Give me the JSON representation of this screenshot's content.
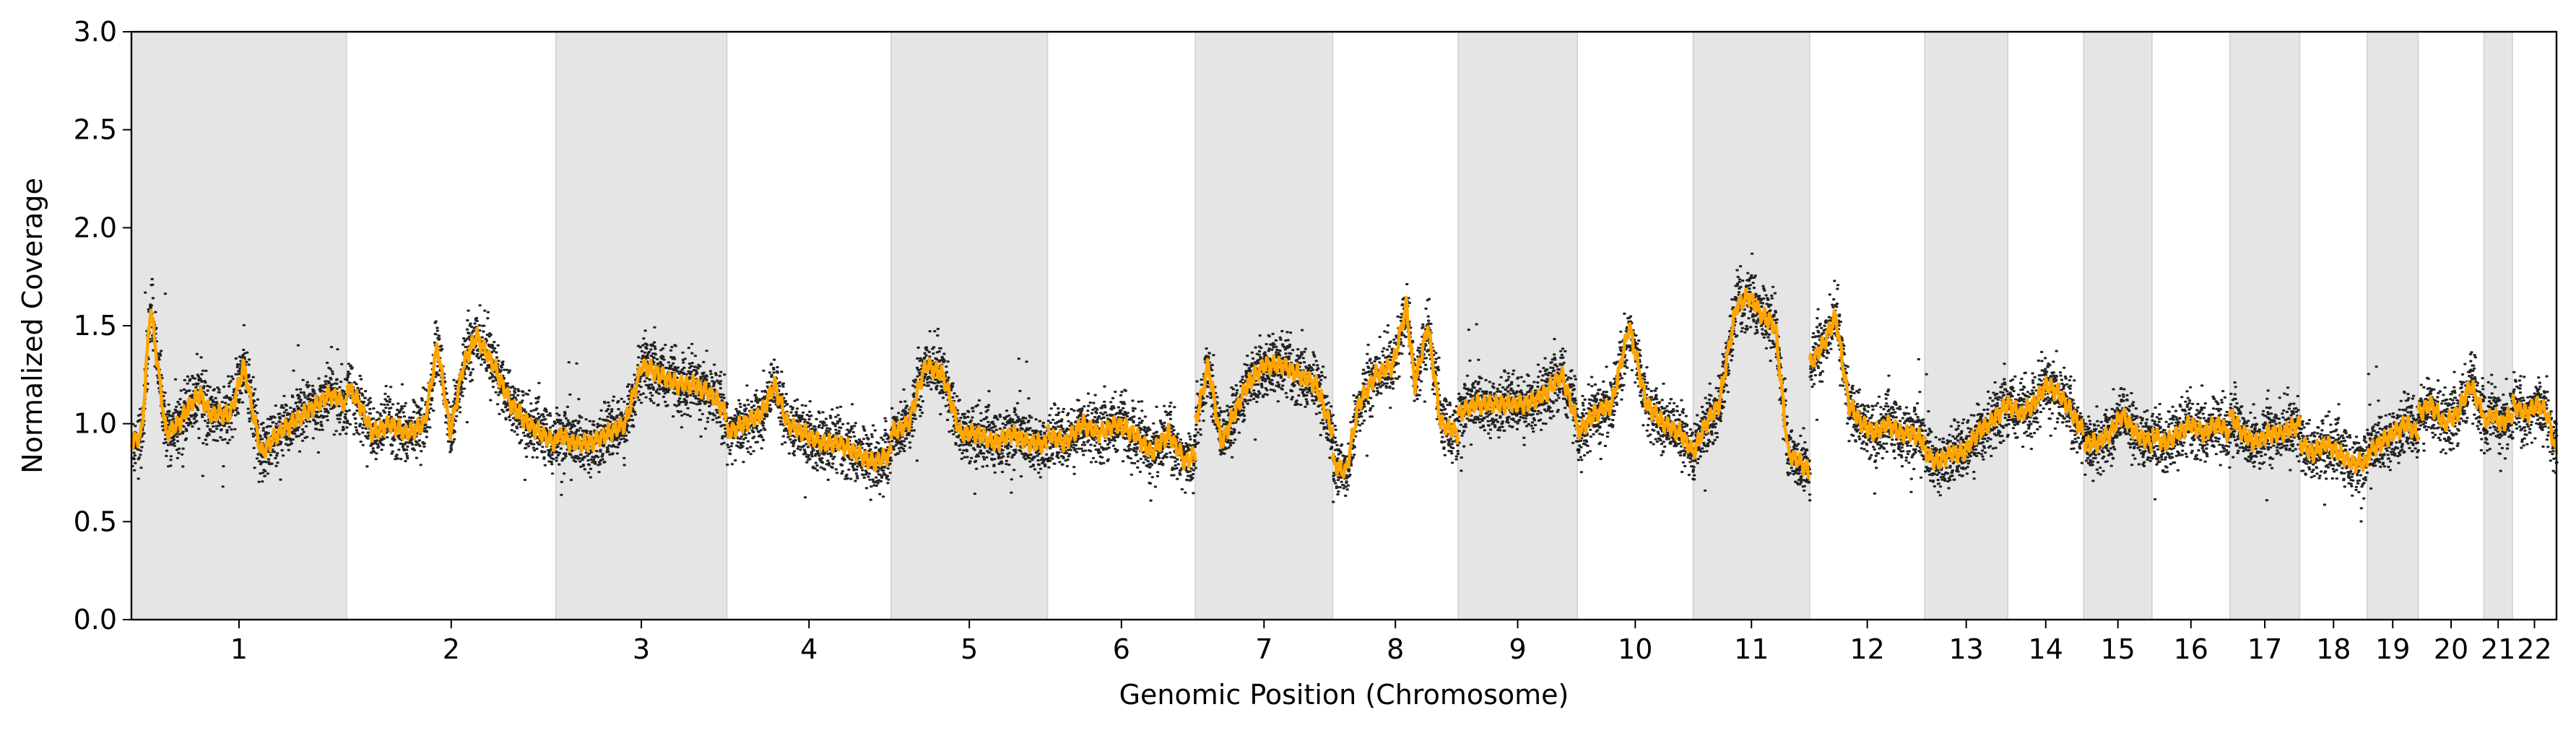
{
  "chart_data": {
    "type": "scatter",
    "xlabel": "Genomic Position (Chromosome)",
    "ylabel": "Normalized Coverage",
    "ylim": [
      0,
      3.0
    ],
    "yticks": [
      "0.0",
      "0.5",
      "1.0",
      "1.5",
      "2.0",
      "2.5",
      "3.0"
    ],
    "grid": false,
    "legend": "none",
    "colors": {
      "points": "#000000",
      "segment_line": "#ffa500",
      "shade": "#e5e5e5"
    },
    "chromosomes": [
      {
        "label": "1",
        "length": 249,
        "shaded": true
      },
      {
        "label": "2",
        "length": 242,
        "shaded": false
      },
      {
        "label": "3",
        "length": 198,
        "shaded": true
      },
      {
        "label": "4",
        "length": 190,
        "shaded": false
      },
      {
        "label": "5",
        "length": 181,
        "shaded": true
      },
      {
        "label": "6",
        "length": 171,
        "shaded": false
      },
      {
        "label": "7",
        "length": 159,
        "shaded": true
      },
      {
        "label": "8",
        "length": 145,
        "shaded": false
      },
      {
        "label": "9",
        "length": 138,
        "shaded": true
      },
      {
        "label": "10",
        "length": 134,
        "shaded": false
      },
      {
        "label": "11",
        "length": 135,
        "shaded": true
      },
      {
        "label": "12",
        "length": 133,
        "shaded": false
      },
      {
        "label": "13",
        "length": 96,
        "shaded": true
      },
      {
        "label": "14",
        "length": 88,
        "shaded": false
      },
      {
        "label": "15",
        "length": 79,
        "shaded": true
      },
      {
        "label": "16",
        "length": 90,
        "shaded": false
      },
      {
        "label": "17",
        "length": 81,
        "shaded": true
      },
      {
        "label": "18",
        "length": 78,
        "shaded": false
      },
      {
        "label": "19",
        "length": 59,
        "shaded": true
      },
      {
        "label": "20",
        "length": 76,
        "shaded": false
      },
      {
        "label": "21",
        "length": 33,
        "shaded": true
      },
      {
        "label": "22",
        "length": 51,
        "shaded": false
      }
    ],
    "segment_profile": [
      {
        "chrom": "1",
        "pos": [
          0,
          12,
          22,
          40,
          55,
          68,
          80,
          90,
          100,
          115,
          130,
          150,
          160,
          170,
          185,
          200,
          215,
          230,
          249
        ],
        "cov": [
          0.9,
          0.95,
          1.6,
          0.95,
          1.0,
          1.1,
          1.15,
          1.05,
          1.05,
          1.05,
          1.3,
          0.85,
          0.9,
          0.95,
          1.0,
          1.05,
          1.1,
          1.15,
          1.1
        ]
      },
      {
        "chrom": "2",
        "pos": [
          0,
          15,
          30,
          50,
          70,
          90,
          105,
          120,
          135,
          150,
          170,
          190,
          210,
          225,
          242
        ],
        "cov": [
          1.2,
          1.1,
          0.95,
          1.0,
          0.95,
          1.0,
          1.4,
          0.95,
          1.3,
          1.45,
          1.3,
          1.1,
          1.0,
          0.95,
          0.9
        ]
      },
      {
        "chrom": "3",
        "pos": [
          0,
          20,
          40,
          60,
          80,
          100,
          120,
          140,
          160,
          180,
          198
        ],
        "cov": [
          0.95,
          0.9,
          0.9,
          0.95,
          1.0,
          1.3,
          1.25,
          1.2,
          1.2,
          1.15,
          1.05
        ]
      },
      {
        "chrom": "4",
        "pos": [
          0,
          20,
          40,
          55,
          70,
          90,
          110,
          130,
          150,
          170,
          190
        ],
        "cov": [
          0.95,
          1.0,
          1.05,
          1.2,
          1.0,
          0.95,
          0.9,
          0.9,
          0.85,
          0.8,
          0.85
        ]
      },
      {
        "chrom": "5",
        "pos": [
          0,
          20,
          40,
          60,
          80,
          100,
          120,
          140,
          160,
          181
        ],
        "cov": [
          0.95,
          1.0,
          1.3,
          1.25,
          0.95,
          0.95,
          0.9,
          0.95,
          0.9,
          0.9
        ]
      },
      {
        "chrom": "6",
        "pos": [
          0,
          20,
          40,
          60,
          80,
          100,
          120,
          140,
          160,
          171
        ],
        "cov": [
          0.95,
          0.9,
          1.0,
          0.95,
          1.0,
          0.95,
          0.85,
          0.95,
          0.8,
          0.85
        ]
      },
      {
        "chrom": "7",
        "pos": [
          0,
          15,
          30,
          45,
          60,
          80,
          100,
          120,
          140,
          159
        ],
        "cov": [
          1.0,
          1.3,
          0.9,
          1.05,
          1.2,
          1.3,
          1.3,
          1.25,
          1.2,
          0.95
        ]
      },
      {
        "chrom": "8",
        "pos": [
          0,
          15,
          30,
          50,
          70,
          85,
          95,
          110,
          125,
          145
        ],
        "cov": [
          0.8,
          0.75,
          1.1,
          1.25,
          1.3,
          1.6,
          1.2,
          1.5,
          1.0,
          0.95
        ]
      },
      {
        "chrom": "9",
        "pos": [
          0,
          20,
          40,
          60,
          80,
          100,
          120,
          138
        ],
        "cov": [
          1.05,
          1.1,
          1.1,
          1.1,
          1.1,
          1.15,
          1.25,
          1.0
        ]
      },
      {
        "chrom": "10",
        "pos": [
          0,
          20,
          40,
          60,
          80,
          100,
          120,
          134
        ],
        "cov": [
          0.95,
          1.05,
          1.1,
          1.5,
          1.1,
          1.0,
          0.95,
          0.85
        ]
      },
      {
        "chrom": "11",
        "pos": [
          0,
          15,
          30,
          50,
          65,
          80,
          95,
          110,
          125,
          135
        ],
        "cov": [
          0.85,
          1.0,
          1.1,
          1.6,
          1.65,
          1.55,
          1.5,
          0.85,
          0.8,
          0.75
        ]
      },
      {
        "chrom": "12",
        "pos": [
          0,
          15,
          30,
          45,
          60,
          75,
          90,
          105,
          120,
          133
        ],
        "cov": [
          1.3,
          1.4,
          1.55,
          1.1,
          1.0,
          0.95,
          1.0,
          0.95,
          0.95,
          0.9
        ]
      },
      {
        "chrom": "13",
        "pos": [
          0,
          15,
          30,
          45,
          60,
          75,
          96
        ],
        "cov": [
          0.85,
          0.8,
          0.85,
          0.85,
          0.95,
          1.0,
          1.1
        ]
      },
      {
        "chrom": "14",
        "pos": [
          0,
          15,
          30,
          45,
          60,
          75,
          88
        ],
        "cov": [
          1.1,
          1.05,
          1.1,
          1.2,
          1.15,
          1.05,
          0.95
        ]
      },
      {
        "chrom": "15",
        "pos": [
          0,
          15,
          30,
          45,
          60,
          79
        ],
        "cov": [
          0.9,
          0.9,
          0.95,
          1.05,
          0.95,
          0.9
        ]
      },
      {
        "chrom": "16",
        "pos": [
          0,
          15,
          30,
          45,
          60,
          75,
          90
        ],
        "cov": [
          0.95,
          0.9,
          0.95,
          1.0,
          0.95,
          1.0,
          0.95
        ]
      },
      {
        "chrom": "17",
        "pos": [
          0,
          15,
          30,
          45,
          60,
          81
        ],
        "cov": [
          1.05,
          0.95,
          0.9,
          0.95,
          0.95,
          1.0
        ]
      },
      {
        "chrom": "18",
        "pos": [
          0,
          15,
          30,
          45,
          60,
          78
        ],
        "cov": [
          0.9,
          0.85,
          0.9,
          0.85,
          0.8,
          0.8
        ]
      },
      {
        "chrom": "19",
        "pos": [
          0,
          15,
          30,
          45,
          59
        ],
        "cov": [
          0.85,
          0.9,
          0.95,
          1.0,
          0.95
        ]
      },
      {
        "chrom": "20",
        "pos": [
          0,
          15,
          30,
          45,
          60,
          76
        ],
        "cov": [
          1.05,
          1.1,
          1.0,
          1.05,
          1.2,
          1.05
        ]
      },
      {
        "chrom": "21",
        "pos": [
          0,
          10,
          20,
          33
        ],
        "cov": [
          1.0,
          1.05,
          1.0,
          1.05
        ]
      },
      {
        "chrom": "22",
        "pos": [
          0,
          15,
          30,
          40,
          51
        ],
        "cov": [
          1.1,
          1.05,
          1.1,
          1.05,
          0.85
        ]
      }
    ]
  }
}
